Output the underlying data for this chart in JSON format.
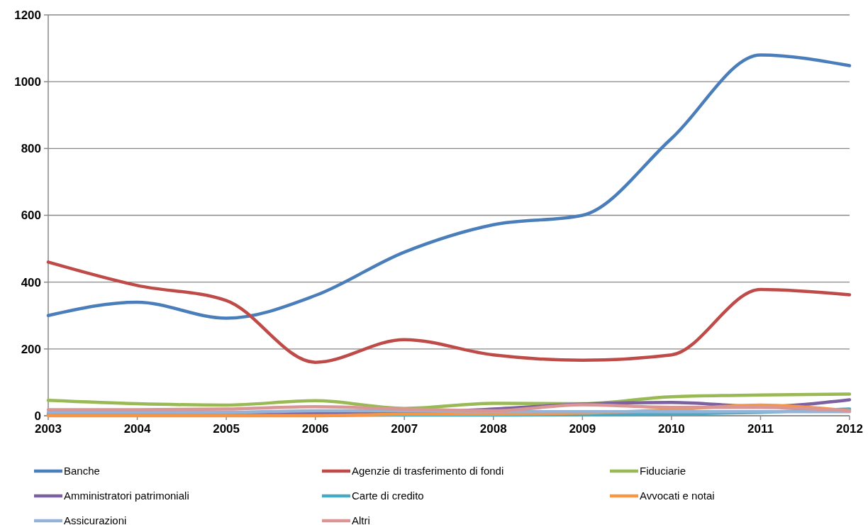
{
  "chart_data": {
    "type": "line",
    "categories": [
      "2003",
      "2004",
      "2005",
      "2006",
      "2007",
      "2008",
      "2009",
      "2010",
      "2011",
      "2012"
    ],
    "ylim": [
      0,
      1200
    ],
    "yticks": [
      0,
      200,
      400,
      600,
      800,
      1000,
      1200
    ],
    "grid": "y",
    "legend": "bottom",
    "marker": "none",
    "series": [
      {
        "name": "Banche",
        "color": "#4a7ebb",
        "values": [
          300,
          340,
          292,
          360,
          490,
          572,
          600,
          830,
          1080,
          1048
        ]
      },
      {
        "name": "Agenzie di trasferimento di fondi",
        "color": "#be4b48",
        "values": [
          460,
          390,
          345,
          160,
          228,
          182,
          166,
          182,
          378,
          362
        ]
      },
      {
        "name": "Fiduciarie",
        "color": "#98b954",
        "values": [
          46,
          36,
          32,
          45,
          22,
          37,
          36,
          57,
          62,
          65
        ]
      },
      {
        "name": "Amministratori patrimoniali",
        "color": "#7d60a0",
        "values": [
          5,
          5,
          5,
          8,
          10,
          20,
          35,
          40,
          28,
          48
        ]
      },
      {
        "name": "Carte di credito",
        "color": "#46aac5",
        "values": [
          2,
          2,
          1,
          1,
          2,
          2,
          3,
          5,
          10,
          20
        ]
      },
      {
        "name": "Avvocati e notai",
        "color": "#f79646",
        "values": [
          0,
          0,
          0,
          0,
          5,
          5,
          8,
          18,
          32,
          15
        ]
      },
      {
        "name": "Assicurazioni",
        "color": "#95b3d7",
        "values": [
          10,
          10,
          10,
          15,
          15,
          12,
          12,
          12,
          12,
          12
        ]
      },
      {
        "name": "Altri",
        "color": "#d99694",
        "values": [
          18,
          18,
          20,
          27,
          20,
          15,
          33,
          25,
          25,
          15
        ]
      }
    ]
  }
}
